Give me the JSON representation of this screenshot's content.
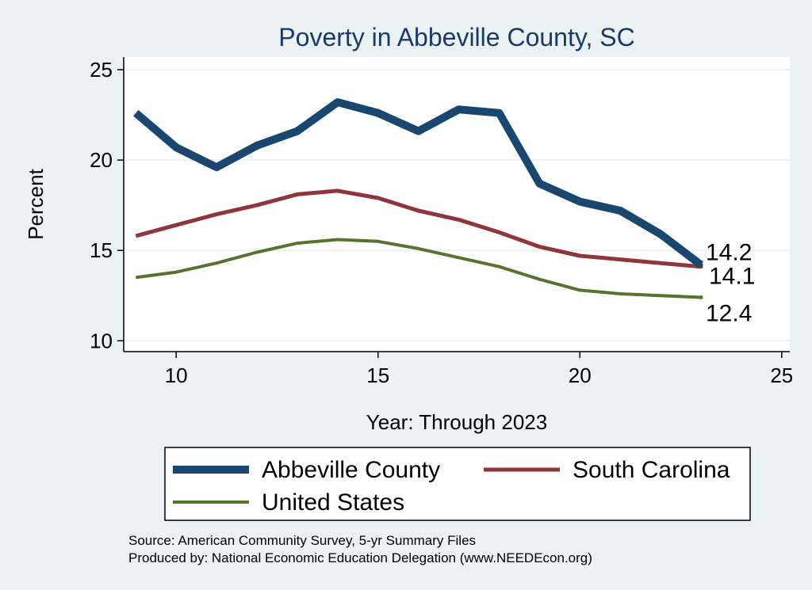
{
  "chart_data": {
    "type": "line",
    "title": "Poverty in Abbeville County, SC",
    "xlabel": "Year: Through 2023",
    "ylabel": "Percent",
    "xlim": [
      8.7,
      25.2
    ],
    "ylim": [
      9.4,
      25.7
    ],
    "xticks": [
      10,
      15,
      20,
      25
    ],
    "yticks": [
      10,
      15,
      20,
      25
    ],
    "grid": true,
    "legend_position": "bottom",
    "x": [
      9,
      10,
      11,
      12,
      13,
      14,
      15,
      16,
      17,
      18,
      19,
      20,
      21,
      22,
      23
    ],
    "series": [
      {
        "name": "Abbeville County",
        "color": "#1a476f",
        "values": [
          22.6,
          20.7,
          19.6,
          20.8,
          21.6,
          23.2,
          22.6,
          21.6,
          22.8,
          22.6,
          18.7,
          17.7,
          17.2,
          15.9,
          14.2
        ],
        "end_label": "14.2"
      },
      {
        "name": "South Carolina",
        "color": "#90353b",
        "values": [
          15.8,
          16.4,
          17.0,
          17.5,
          18.1,
          18.3,
          17.9,
          17.2,
          16.7,
          16.0,
          15.2,
          14.7,
          14.5,
          14.3,
          14.1
        ],
        "end_label": "14.1"
      },
      {
        "name": "United States",
        "color": "#55752f",
        "values": [
          13.5,
          13.8,
          14.3,
          14.9,
          15.4,
          15.6,
          15.5,
          15.1,
          14.6,
          14.1,
          13.4,
          12.8,
          12.6,
          12.5,
          12.4
        ],
        "end_label": "12.4"
      }
    ]
  },
  "notes": {
    "source": "Source: American Community Survey, 5-yr Summary Files",
    "produced_by": "Produced by: National Economic Education Delegation (www.NEEDEcon.org)"
  }
}
